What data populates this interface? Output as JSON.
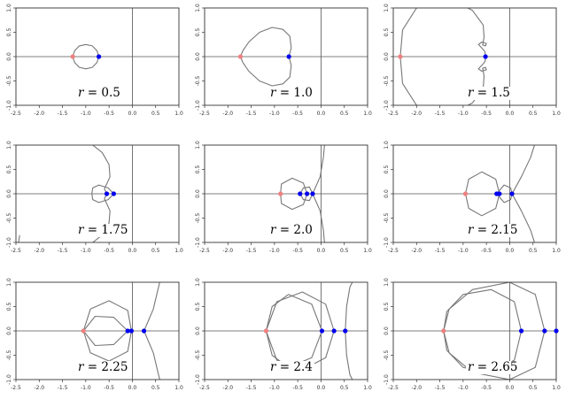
{
  "chart_data": [
    {
      "type": "line",
      "label": "0.5",
      "xlim": [
        -2.5,
        1.0
      ],
      "ylim": [
        -1.0,
        1.0
      ],
      "x_ticks": [
        "-2.5",
        "-2.0",
        "-1.5",
        "-1.0",
        "-0.5",
        "0.0",
        "0.5",
        "1.0"
      ],
      "y_ticks": [
        "-1.0",
        "-0.5",
        "0.0",
        "0.5",
        "1.0"
      ],
      "blue_points": [
        [
          -0.72,
          0.0
        ]
      ],
      "red_points": [
        [
          -1.28,
          0.0
        ]
      ],
      "curves": [
        [
          [
            -0.72,
            0.0
          ],
          [
            -0.76,
            0.12
          ],
          [
            -0.86,
            0.22
          ],
          [
            -1.0,
            0.25
          ],
          [
            -1.14,
            0.22
          ],
          [
            -1.24,
            0.12
          ],
          [
            -1.28,
            0.0
          ],
          [
            -1.24,
            -0.12
          ],
          [
            -1.14,
            -0.22
          ],
          [
            -1.0,
            -0.25
          ],
          [
            -0.86,
            -0.22
          ],
          [
            -0.76,
            -0.12
          ],
          [
            -0.72,
            0.0
          ]
        ]
      ]
    },
    {
      "type": "line",
      "label": "1.0",
      "xlim": [
        -2.5,
        1.0
      ],
      "ylim": [
        -1.0,
        1.0
      ],
      "x_ticks": [
        "-2.5",
        "-2.0",
        "-1.5",
        "-1.0",
        "-0.5",
        "0.0",
        "0.5",
        "1.0"
      ],
      "y_ticks": [
        "-1.0",
        "-0.5",
        "0.0",
        "0.5",
        "1.0"
      ],
      "blue_points": [
        [
          -0.69,
          0.0
        ]
      ],
      "red_points": [
        [
          -1.73,
          0.0
        ]
      ],
      "curves": [
        [
          [
            -0.69,
            0.0
          ],
          [
            -0.64,
            0.18
          ],
          [
            -0.67,
            0.42
          ],
          [
            -0.82,
            0.56
          ],
          [
            -1.05,
            0.6
          ],
          [
            -1.32,
            0.5
          ],
          [
            -1.55,
            0.3
          ],
          [
            -1.68,
            0.12
          ],
          [
            -1.73,
            0.0
          ],
          [
            -1.68,
            -0.12
          ],
          [
            -1.55,
            -0.3
          ],
          [
            -1.32,
            -0.5
          ],
          [
            -1.05,
            -0.6
          ],
          [
            -0.82,
            -0.56
          ],
          [
            -0.67,
            -0.42
          ],
          [
            -0.64,
            -0.18
          ],
          [
            -0.69,
            0.0
          ]
        ]
      ]
    },
    {
      "type": "line",
      "label": "1.5",
      "xlim": [
        -2.5,
        1.0
      ],
      "ylim": [
        -1.0,
        1.0
      ],
      "x_ticks": [
        "-2.5",
        "-2.0",
        "-1.5",
        "-1.0",
        "-0.5",
        "0.0",
        "0.5",
        "1.0"
      ],
      "y_ticks": [
        "-1.0",
        "-0.5",
        "0.0",
        "0.5",
        "1.0"
      ],
      "blue_points": [
        [
          -0.52,
          0.0
        ]
      ],
      "red_points": [
        [
          -2.35,
          0.0
        ]
      ],
      "curves": [
        [
          [
            -0.52,
            0.0
          ],
          [
            -0.53,
            0.1
          ],
          [
            -0.58,
            0.16
          ],
          [
            -0.67,
            0.25
          ],
          [
            -0.6,
            0.3
          ],
          [
            -0.5,
            0.27
          ],
          [
            -0.52,
            0.22
          ],
          [
            -0.58,
            0.24
          ],
          [
            -0.55,
            0.4
          ],
          [
            -0.57,
            0.65
          ],
          [
            -0.8,
            0.95
          ],
          [
            -1.2,
            1.15
          ],
          [
            -1.6,
            1.2
          ],
          [
            -2.0,
            1.0
          ],
          [
            -2.3,
            0.55
          ],
          [
            -2.35,
            0.0
          ],
          [
            -2.3,
            -0.55
          ],
          [
            -2.0,
            -1.0
          ],
          [
            -1.6,
            -1.2
          ],
          [
            -1.2,
            -1.15
          ],
          [
            -0.8,
            -0.95
          ],
          [
            -0.57,
            -0.65
          ],
          [
            -0.55,
            -0.4
          ],
          [
            -0.58,
            -0.24
          ],
          [
            -0.52,
            -0.22
          ],
          [
            -0.5,
            -0.27
          ],
          [
            -0.6,
            -0.3
          ],
          [
            -0.67,
            -0.25
          ],
          [
            -0.58,
            -0.16
          ],
          [
            -0.53,
            -0.1
          ],
          [
            -0.52,
            0.0
          ]
        ]
      ]
    },
    {
      "type": "line",
      "label": "1.75",
      "xlim": [
        -2.5,
        1.0
      ],
      "ylim": [
        -1.0,
        1.0
      ],
      "x_ticks": [
        "-2.5",
        "-2.0",
        "-1.5",
        "-1.0",
        "-0.5",
        "0.0",
        "0.5",
        "1.0"
      ],
      "y_ticks": [
        "-1.0",
        "-0.5",
        "0.0",
        "0.5",
        "1.0"
      ],
      "blue_points": [
        [
          -0.55,
          0.0
        ],
        [
          -0.4,
          0.0
        ]
      ],
      "red_points": [],
      "curves": [
        [
          [
            -0.4,
            0.0
          ],
          [
            -0.52,
            0.12
          ],
          [
            -0.72,
            0.18
          ],
          [
            -0.85,
            0.12
          ],
          [
            -0.87,
            0.0
          ],
          [
            -0.85,
            -0.12
          ],
          [
            -0.72,
            -0.18
          ],
          [
            -0.52,
            -0.12
          ],
          [
            -0.4,
            0.0
          ]
        ],
        [
          [
            -0.55,
            0.0
          ],
          [
            -0.6,
            0.1
          ],
          [
            -0.48,
            0.35
          ],
          [
            -0.5,
            0.6
          ],
          [
            -0.65,
            0.85
          ],
          [
            -0.85,
            1.0
          ],
          [
            -0.95,
            1.05
          ]
        ],
        [
          [
            -0.55,
            0.0
          ],
          [
            -0.6,
            -0.1
          ],
          [
            -0.48,
            -0.35
          ],
          [
            -0.5,
            -0.6
          ],
          [
            -0.65,
            -0.85
          ],
          [
            -0.85,
            -1.0
          ],
          [
            -0.95,
            -1.05
          ]
        ],
        [
          [
            -2.42,
            -0.85
          ],
          [
            -2.45,
            -1.05
          ]
        ]
      ]
    },
    {
      "type": "line",
      "label": "2.0",
      "xlim": [
        -2.5,
        1.0
      ],
      "ylim": [
        -1.0,
        1.0
      ],
      "x_ticks": [
        "-2.5",
        "-2.0",
        "-1.5",
        "-1.0",
        "-0.5",
        "0.0",
        "0.5",
        "1.0"
      ],
      "y_ticks": [
        "-1.0",
        "-0.5",
        "0.0",
        "0.5",
        "1.0"
      ],
      "blue_points": [
        [
          -0.45,
          0.0
        ],
        [
          -0.3,
          0.0
        ],
        [
          -0.18,
          0.0
        ]
      ],
      "red_points": [
        [
          -0.87,
          0.0
        ]
      ],
      "curves": [
        [
          [
            -0.3,
            0.0
          ],
          [
            -0.38,
            0.22
          ],
          [
            -0.62,
            0.32
          ],
          [
            -0.85,
            0.2
          ],
          [
            -0.87,
            0.0
          ],
          [
            -0.85,
            -0.2
          ],
          [
            -0.62,
            -0.32
          ],
          [
            -0.38,
            -0.22
          ],
          [
            -0.3,
            0.0
          ]
        ],
        [
          [
            -0.45,
            0.0
          ],
          [
            -0.38,
            0.12
          ],
          [
            -0.25,
            0.14
          ],
          [
            -0.18,
            0.0
          ],
          [
            -0.25,
            -0.14
          ],
          [
            -0.38,
            -0.12
          ],
          [
            -0.45,
            0.0
          ]
        ],
        [
          [
            -0.18,
            0.0
          ],
          [
            -0.02,
            0.35
          ],
          [
            0.05,
            0.75
          ],
          [
            0.08,
            1.05
          ]
        ],
        [
          [
            -0.18,
            0.0
          ],
          [
            -0.02,
            -0.35
          ],
          [
            0.05,
            -0.75
          ],
          [
            0.08,
            -1.05
          ]
        ]
      ]
    },
    {
      "type": "line",
      "label": "2.15",
      "xlim": [
        -2.5,
        1.0
      ],
      "ylim": [
        -1.0,
        1.0
      ],
      "x_ticks": [
        "-2.5",
        "-2.0",
        "-1.5",
        "-1.0",
        "-0.5",
        "0.0",
        "0.5",
        "1.0"
      ],
      "y_ticks": [
        "-1.0",
        "-0.5",
        "0.0",
        "0.5",
        "1.0"
      ],
      "blue_points": [
        [
          -0.28,
          0.0
        ],
        [
          -0.22,
          0.0
        ],
        [
          0.05,
          0.0
        ]
      ],
      "red_points": [
        [
          -0.95,
          0.0
        ]
      ],
      "curves": [
        [
          [
            -0.22,
            0.0
          ],
          [
            -0.3,
            0.3
          ],
          [
            -0.6,
            0.45
          ],
          [
            -0.88,
            0.3
          ],
          [
            -0.95,
            0.0
          ],
          [
            -0.88,
            -0.3
          ],
          [
            -0.6,
            -0.45
          ],
          [
            -0.3,
            -0.3
          ],
          [
            -0.22,
            0.0
          ]
        ],
        [
          [
            -0.28,
            0.0
          ],
          [
            -0.12,
            0.18
          ],
          [
            0.02,
            0.12
          ],
          [
            0.05,
            0.0
          ],
          [
            0.02,
            -0.12
          ],
          [
            -0.12,
            -0.18
          ],
          [
            -0.28,
            0.0
          ]
        ],
        [
          [
            0.05,
            0.0
          ],
          [
            0.25,
            0.35
          ],
          [
            0.45,
            0.75
          ],
          [
            0.55,
            1.05
          ]
        ],
        [
          [
            0.05,
            0.0
          ],
          [
            0.25,
            -0.35
          ],
          [
            0.45,
            -0.75
          ],
          [
            0.55,
            -1.05
          ]
        ]
      ]
    },
    {
      "type": "line",
      "label": "2.25",
      "xlim": [
        -2.5,
        1.0
      ],
      "ylim": [
        -1.0,
        1.0
      ],
      "x_ticks": [
        "-2.5",
        "-2.0",
        "-1.5",
        "-1.0",
        "-0.5",
        "0.0",
        "0.5",
        "1.0"
      ],
      "y_ticks": [
        "-1.0",
        "-0.5",
        "0.0",
        "0.5",
        "1.0"
      ],
      "blue_points": [
        [
          -0.1,
          0.0
        ],
        [
          -0.02,
          0.0
        ],
        [
          0.25,
          0.0
        ]
      ],
      "red_points": [
        [
          -1.05,
          0.0
        ]
      ],
      "curves": [
        [
          [
            -0.02,
            0.0
          ],
          [
            -0.1,
            0.42
          ],
          [
            -0.5,
            0.62
          ],
          [
            -0.9,
            0.45
          ],
          [
            -1.05,
            0.0
          ],
          [
            -0.9,
            -0.45
          ],
          [
            -0.5,
            -0.62
          ],
          [
            -0.1,
            -0.42
          ],
          [
            -0.02,
            0.0
          ]
        ],
        [
          [
            -0.1,
            0.0
          ],
          [
            -0.4,
            0.28
          ],
          [
            -0.8,
            0.3
          ],
          [
            -1.05,
            0.0
          ],
          [
            -0.8,
            -0.3
          ],
          [
            -0.4,
            -0.28
          ],
          [
            -0.1,
            0.0
          ]
        ],
        [
          [
            0.25,
            0.0
          ],
          [
            0.45,
            0.45
          ],
          [
            0.55,
            0.85
          ],
          [
            0.6,
            1.05
          ]
        ],
        [
          [
            0.25,
            0.0
          ],
          [
            0.45,
            -0.45
          ],
          [
            0.55,
            -0.85
          ],
          [
            0.6,
            -1.05
          ]
        ]
      ]
    },
    {
      "type": "line",
      "label": "2.4",
      "xlim": [
        -2.5,
        1.0
      ],
      "ylim": [
        -1.0,
        1.0
      ],
      "x_ticks": [
        "-2.5",
        "-2.0",
        "-1.5",
        "-1.0",
        "-0.5",
        "0.0",
        "0.5",
        "1.0"
      ],
      "y_ticks": [
        "-1.0",
        "-0.5",
        "0.0",
        "0.5",
        "1.0"
      ],
      "blue_points": [
        [
          0.02,
          0.0
        ],
        [
          0.28,
          0.0
        ],
        [
          0.52,
          0.0
        ]
      ],
      "red_points": [
        [
          -1.18,
          0.0
        ]
      ],
      "curves": [
        [
          [
            0.02,
            0.0
          ],
          [
            -0.2,
            0.55
          ],
          [
            -0.7,
            0.75
          ],
          [
            -1.05,
            0.5
          ],
          [
            -1.18,
            0.0
          ],
          [
            -1.05,
            -0.5
          ],
          [
            -0.7,
            -0.75
          ],
          [
            -0.2,
            -0.55
          ],
          [
            0.02,
            0.0
          ]
        ],
        [
          [
            0.28,
            0.0
          ],
          [
            0.1,
            0.55
          ],
          [
            -0.4,
            0.8
          ],
          [
            -0.95,
            0.6
          ],
          [
            -1.18,
            0.0
          ],
          [
            -0.95,
            -0.6
          ],
          [
            -0.4,
            -0.8
          ],
          [
            0.1,
            -0.55
          ],
          [
            0.28,
            0.0
          ]
        ],
        [
          [
            0.52,
            0.0
          ],
          [
            0.55,
            0.5
          ],
          [
            0.62,
            0.9
          ],
          [
            0.7,
            1.05
          ]
        ],
        [
          [
            0.52,
            0.0
          ],
          [
            0.55,
            -0.5
          ],
          [
            0.62,
            -0.9
          ],
          [
            0.7,
            -1.05
          ]
        ]
      ]
    },
    {
      "type": "line",
      "label": "2.65",
      "xlim": [
        -2.5,
        1.0
      ],
      "ylim": [
        -1.0,
        1.0
      ],
      "x_ticks": [
        "-2.5",
        "-2.0",
        "-1.5",
        "-1.0",
        "-0.5",
        "0.0",
        "0.5",
        "1.0"
      ],
      "y_ticks": [
        "-1.0",
        "-0.5",
        "0.0",
        "0.5",
        "1.0"
      ],
      "blue_points": [
        [
          0.25,
          0.0
        ],
        [
          0.75,
          0.0
        ],
        [
          1.0,
          0.0
        ]
      ],
      "red_points": [
        [
          -1.42,
          0.0
        ]
      ],
      "curves": [
        [
          [
            0.25,
            0.0
          ],
          [
            0.1,
            0.6
          ],
          [
            -0.4,
            0.85
          ],
          [
            -1.0,
            0.75
          ],
          [
            -1.35,
            0.4
          ],
          [
            -1.42,
            0.0
          ],
          [
            -1.35,
            -0.4
          ],
          [
            -1.0,
            -0.75
          ],
          [
            -0.4,
            -0.85
          ],
          [
            0.1,
            -0.6
          ],
          [
            0.25,
            0.0
          ]
        ],
        [
          [
            0.75,
            0.0
          ],
          [
            0.55,
            0.75
          ],
          [
            0.0,
            1.0
          ],
          [
            -0.8,
            0.85
          ],
          [
            -1.3,
            0.45
          ],
          [
            -1.42,
            0.0
          ],
          [
            -1.3,
            -0.45
          ],
          [
            -0.8,
            -0.85
          ],
          [
            0.0,
            -1.0
          ],
          [
            0.55,
            -0.75
          ],
          [
            0.75,
            0.0
          ]
        ],
        [
          [
            1.0,
            0.0
          ],
          [
            1.0,
            0.5
          ],
          [
            1.0,
            1.05
          ]
        ],
        [
          [
            1.0,
            0.0
          ],
          [
            1.0,
            -0.5
          ],
          [
            1.0,
            -1.05
          ]
        ]
      ]
    }
  ],
  "style": {
    "curve_color": "#777777",
    "point_color": "#0000ee",
    "origin_point_color": "#f08080",
    "axis_color": "#555555"
  }
}
